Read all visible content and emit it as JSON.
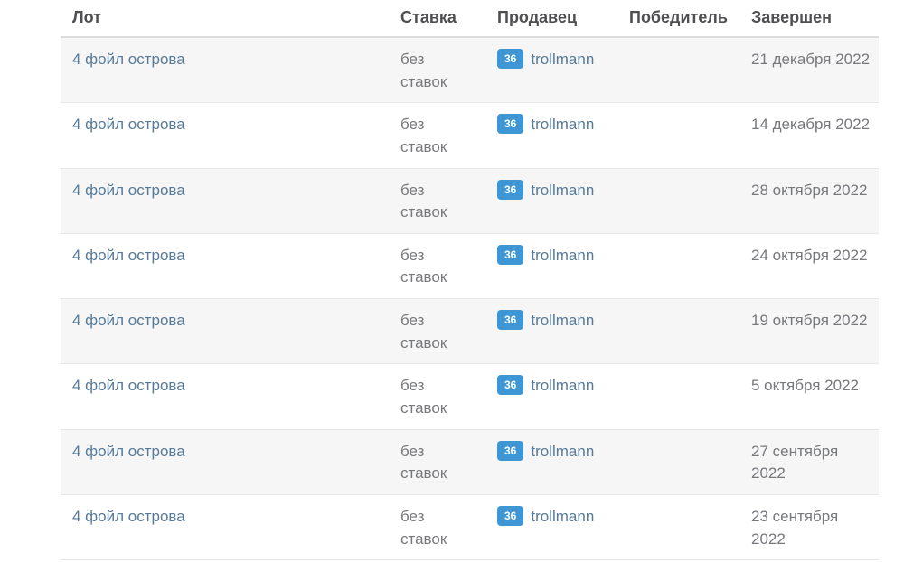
{
  "colors": {
    "header_text": "#4f4f51",
    "link": "#567a99",
    "muted_text": "#77787c",
    "badge_bg": "#3e97d4",
    "badge_text": "#ffffff",
    "row_stripe": "#f6f6f6",
    "divider": "#e7e7e7",
    "header_divider": "#dcdcdc",
    "page_bg": "#ffffff"
  },
  "table": {
    "columns": [
      {
        "key": "lot",
        "label": "Лот"
      },
      {
        "key": "bid",
        "label": "Ставка"
      },
      {
        "key": "seller",
        "label": "Продавец"
      },
      {
        "key": "winner",
        "label": "Победитель"
      },
      {
        "key": "finished",
        "label": "Завершен"
      }
    ],
    "rows": [
      {
        "lot": "4 фойл острова",
        "bid": "без ставок",
        "seller_badge": "36",
        "seller": "trollmann",
        "winner": "",
        "finished": "21 декабря 2022"
      },
      {
        "lot": "4 фойл острова",
        "bid": "без ставок",
        "seller_badge": "36",
        "seller": "trollmann",
        "winner": "",
        "finished": "14 декабря 2022"
      },
      {
        "lot": "4 фойл острова",
        "bid": "без ставок",
        "seller_badge": "36",
        "seller": "trollmann",
        "winner": "",
        "finished": "28 октября 2022"
      },
      {
        "lot": "4 фойл острова",
        "bid": "без ставок",
        "seller_badge": "36",
        "seller": "trollmann",
        "winner": "",
        "finished": "24 октября 2022"
      },
      {
        "lot": "4 фойл острова",
        "bid": "без ставок",
        "seller_badge": "36",
        "seller": "trollmann",
        "winner": "",
        "finished": "19 октября 2022"
      },
      {
        "lot": "4 фойл острова",
        "bid": "без ставок",
        "seller_badge": "36",
        "seller": "trollmann",
        "winner": "",
        "finished": "5 октября 2022"
      },
      {
        "lot": "4 фойл острова",
        "bid": "без ставок",
        "seller_badge": "36",
        "seller": "trollmann",
        "winner": "",
        "finished": "27 сентября 2022"
      },
      {
        "lot": "4 фойл острова",
        "bid": "без ставок",
        "seller_badge": "36",
        "seller": "trollmann",
        "winner": "",
        "finished": "23 сентября 2022"
      }
    ]
  }
}
